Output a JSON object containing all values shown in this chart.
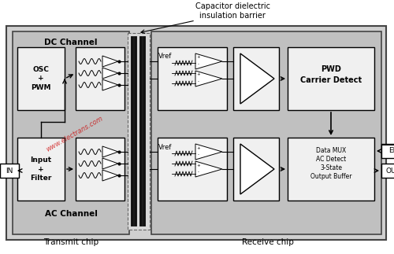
{
  "fig_w": 5.0,
  "fig_h": 3.23,
  "dpi": 100,
  "bg": "#ffffff",
  "chip_bg": "#c8c8c8",
  "block_bg": "#f0f0f0",
  "recv_bg": "#c8c8c8",
  "title": "Capacitor dielectric\ninsulation barrier",
  "tx_label": "Transmit chip",
  "rx_label": "Receive chip",
  "dc_label": "DC Channel",
  "ac_label": "AC Channel",
  "osc_label": "OSC\n+\nPWM",
  "inf_label": "Input\n+\nFilter",
  "pwd_label": "PWD\nCarrier Detect",
  "mux_label": "Data MUX\nAC Detect\n3-State\nOutput Buffer",
  "vref": "Vref",
  "in_label": "IN",
  "en_label": "EN",
  "out_label": "OUT",
  "wm_color": "#cc0000"
}
